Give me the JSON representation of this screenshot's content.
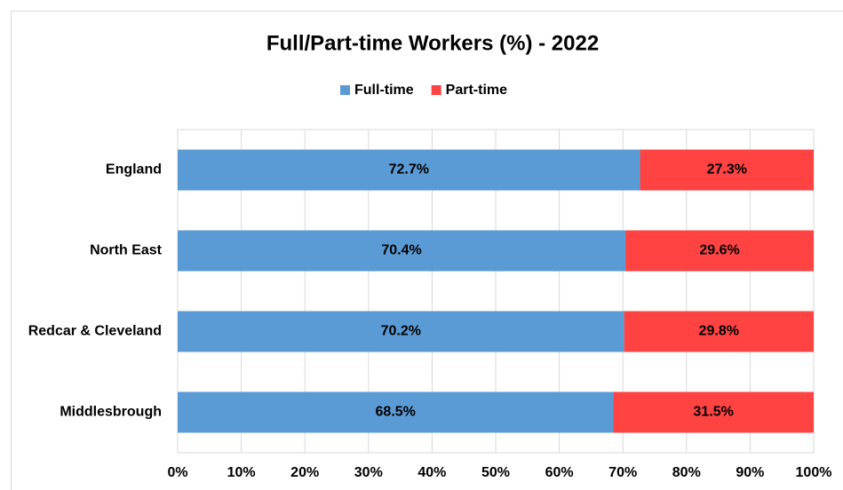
{
  "chart_data": {
    "type": "stacked-bar-horizontal",
    "title": "Full/Part-time Workers (%) - 2022",
    "categories": [
      "England",
      "North East",
      "Redcar & Cleveland",
      "Middlesbrough"
    ],
    "series": [
      {
        "name": "Full-time",
        "color": "#5b9bd5",
        "values": [
          72.7,
          70.4,
          70.2,
          68.5
        ],
        "value_labels": [
          "72.7%",
          "70.4%",
          "70.2%",
          "68.5%"
        ]
      },
      {
        "name": "Part-time",
        "color": "#ff4343",
        "values": [
          27.3,
          29.6,
          29.8,
          31.5
        ],
        "value_labels": [
          "27.3%",
          "29.6%",
          "29.8%",
          "31.5%"
        ]
      }
    ],
    "xlim": [
      0,
      100
    ],
    "xticks": [
      {
        "value": 0,
        "label": "0%"
      },
      {
        "value": 10,
        "label": "10%"
      },
      {
        "value": 20,
        "label": "20%"
      },
      {
        "value": 30,
        "label": "30%"
      },
      {
        "value": 40,
        "label": "40%"
      },
      {
        "value": 50,
        "label": "50%"
      },
      {
        "value": 60,
        "label": "60%"
      },
      {
        "value": 70,
        "label": "70%"
      },
      {
        "value": 80,
        "label": "80%"
      },
      {
        "value": 90,
        "label": "90%"
      },
      {
        "value": 100,
        "label": "100%"
      }
    ],
    "grid": true,
    "legend": "top"
  }
}
